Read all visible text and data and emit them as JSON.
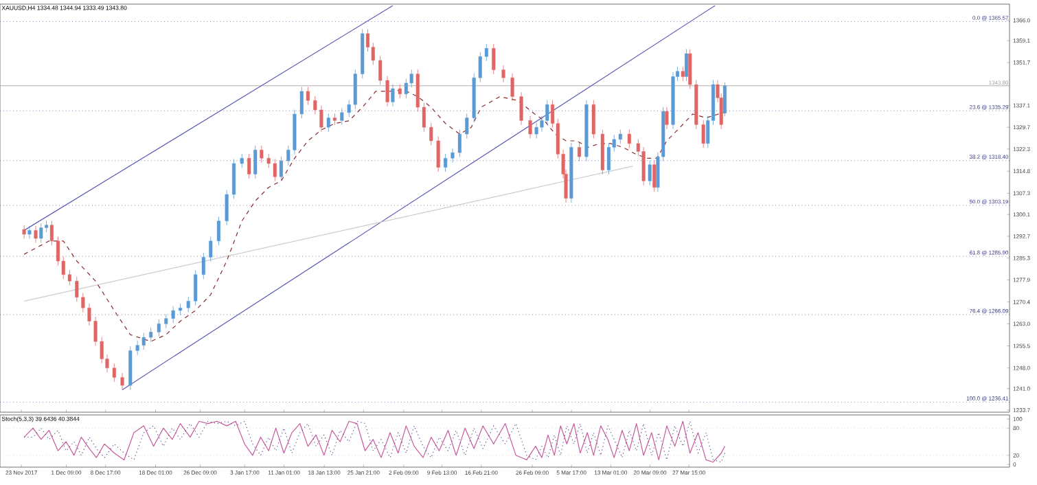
{
  "chart_data": [
    {
      "type": "candlestick",
      "title": "XAUUSD,H4 1334.48 1344.94 1333.49 1343.80",
      "x": [
        "2017-11-23T12:00",
        "2017-11-24T12:00",
        "2017-11-25T16:00",
        "2017-11-26T16:00",
        "2017-11-27T16:00",
        "2017-11-28T16:00",
        "2017-11-29T20:00",
        "2017-11-30T20:00",
        "2017-12-02T00:00",
        "2017-12-03T08:00",
        "2017-12-04T12:00",
        "2017-12-05T16:00",
        "2017-12-06T20:00",
        "2017-12-08T00:00",
        "2017-12-09T00:00",
        "2017-12-10T08:00",
        "2017-12-11T20:00",
        "2017-12-13T08:00",
        "2017-12-14T16:00",
        "2017-12-15T20:00",
        "2017-12-17T04:00",
        "2017-12-18T16:00",
        "2017-12-20T00:00",
        "2017-12-21T08:00",
        "2017-12-22T16:00",
        "2017-12-24T04:00",
        "2017-12-25T12:00",
        "2017-12-27T00:00",
        "2017-12-28T08:00",
        "2017-12-29T20:00",
        "2017-12-31T08:00",
        "2018-01-01T16:00",
        "2018-01-03T04:00",
        "2018-01-04T12:00",
        "2018-01-05T16:00",
        "2018-01-06T20:00",
        "2018-01-08T04:00",
        "2018-01-09T08:00",
        "2018-01-10T12:00",
        "2018-01-11T20:00",
        "2018-01-13T00:00",
        "2018-01-14T08:00",
        "2018-01-15T12:00",
        "2018-01-16T20:00",
        "2018-01-18T00:00",
        "2018-01-19T08:00",
        "2018-01-20T12:00",
        "2018-01-21T20:00",
        "2018-01-23T04:00",
        "2018-01-24T08:00",
        "2018-01-25T16:00",
        "2018-01-26T16:00",
        "2018-01-27T16:00",
        "2018-01-29T00:00",
        "2018-01-30T08:00",
        "2018-01-31T08:00",
        "2018-02-01T16:00",
        "2018-02-02T20:00",
        "2018-02-03T20:00",
        "2018-02-05T00:00",
        "2018-02-06T04:00",
        "2018-02-07T12:00",
        "2018-02-08T20:00",
        "2018-02-10T04:00",
        "2018-02-11T12:00",
        "2018-02-12T20:00",
        "2018-02-14T04:00",
        "2018-02-15T12:00",
        "2018-02-16T16:00",
        "2018-02-17T20:00",
        "2018-02-19T04:00",
        "2018-02-21T00:00",
        "2018-02-22T16:00",
        "2018-02-24T08:00",
        "2018-02-26T00:00",
        "2018-02-27T04:00",
        "2018-02-28T04:00",
        "2018-03-01T04:00",
        "2018-03-02T04:00",
        "2018-03-03T04:00",
        "2018-03-04T04:00",
        "2018-03-04T16:00",
        "2018-03-05T16:00",
        "2018-03-07T04:00",
        "2018-03-08T12:00",
        "2018-03-09T20:00",
        "2018-03-11T12:00",
        "2018-03-12T16:00",
        "2018-03-13T16:00",
        "2018-03-14T20:00",
        "2018-03-16T12:00",
        "2018-03-18T04:00",
        "2018-03-19T04:00",
        "2018-03-20T08:00",
        "2018-03-21T04:00",
        "2018-03-21T20:00",
        "2018-03-22T20:00",
        "2018-03-23T12:00",
        "2018-03-24T16:00",
        "2018-03-25T12:00",
        "2018-03-26T12:00",
        "2018-03-27T04:00",
        "2018-03-27T20:00",
        "2018-03-29T00:00",
        "2018-03-30T08:00",
        "2018-03-31T04:00",
        "2018-04-01T04:00",
        "2018-04-02T00:00",
        "2018-04-02T16:00",
        "2018-04-03T08:00"
      ],
      "ohlc": [
        [
          1295.0,
          1296.5,
          1291.9,
          1293.4
        ],
        [
          1293.4,
          1296.2,
          1291.9,
          1294.7
        ],
        [
          1294.7,
          1296.2,
          1290.5,
          1292.0
        ],
        [
          1292.0,
          1297.1,
          1290.5,
          1295.6
        ],
        [
          1295.6,
          1298.0,
          1294.1,
          1296.5
        ],
        [
          1296.5,
          1298.0,
          1289.6,
          1291.1
        ],
        [
          1291.1,
          1292.6,
          1282.8,
          1284.3
        ],
        [
          1284.3,
          1285.8,
          1278.2,
          1279.7
        ],
        [
          1279.7,
          1281.2,
          1276.0,
          1277.5
        ],
        [
          1277.5,
          1279.0,
          1270.5,
          1272.0
        ],
        [
          1272.0,
          1273.5,
          1266.9,
          1268.4
        ],
        [
          1268.4,
          1269.9,
          1262.4,
          1263.9
        ],
        [
          1263.9,
          1265.4,
          1255.5,
          1257.0
        ],
        [
          1257.0,
          1258.5,
          1249.6,
          1251.1
        ],
        [
          1251.1,
          1252.6,
          1246.5,
          1248.0
        ],
        [
          1248.0,
          1249.5,
          1243.3,
          1244.8
        ],
        [
          1244.8,
          1246.3,
          1240.6,
          1242.1
        ],
        [
          1242.1,
          1255.4,
          1240.6,
          1253.9
        ],
        [
          1253.9,
          1257.2,
          1252.4,
          1255.7
        ],
        [
          1255.7,
          1259.9,
          1254.2,
          1258.4
        ],
        [
          1258.4,
          1261.7,
          1256.9,
          1260.2
        ],
        [
          1260.2,
          1264.5,
          1258.7,
          1263.0
        ],
        [
          1263.0,
          1266.3,
          1261.5,
          1264.8
        ],
        [
          1264.8,
          1269.0,
          1263.3,
          1267.5
        ],
        [
          1267.5,
          1269.9,
          1266.0,
          1268.4
        ],
        [
          1268.4,
          1272.2,
          1266.9,
          1270.7
        ],
        [
          1270.7,
          1281.2,
          1269.2,
          1279.7
        ],
        [
          1279.7,
          1287.1,
          1278.2,
          1285.6
        ],
        [
          1285.6,
          1292.6,
          1284.1,
          1291.1
        ],
        [
          1291.1,
          1299.4,
          1289.6,
          1297.9
        ],
        [
          1297.9,
          1308.4,
          1296.4,
          1306.9
        ],
        [
          1306.9,
          1318.9,
          1305.4,
          1317.4
        ],
        [
          1317.4,
          1320.7,
          1315.9,
          1319.2
        ],
        [
          1319.2,
          1320.7,
          1312.3,
          1313.8
        ],
        [
          1313.8,
          1323.5,
          1312.3,
          1322.0
        ],
        [
          1322.0,
          1323.5,
          1317.7,
          1319.2
        ],
        [
          1319.2,
          1320.7,
          1315.9,
          1317.4
        ],
        [
          1317.4,
          1318.9,
          1311.4,
          1312.9
        ],
        [
          1312.9,
          1319.8,
          1311.4,
          1318.3
        ],
        [
          1318.3,
          1323.5,
          1316.8,
          1322.0
        ],
        [
          1322.0,
          1335.7,
          1320.5,
          1334.2
        ],
        [
          1334.2,
          1343.4,
          1332.7,
          1341.9
        ],
        [
          1341.9,
          1343.4,
          1337.3,
          1338.8
        ],
        [
          1338.8,
          1340.3,
          1334.1,
          1335.6
        ],
        [
          1335.6,
          1337.1,
          1328.2,
          1329.7
        ],
        [
          1329.7,
          1334.4,
          1328.2,
          1332.9
        ],
        [
          1332.9,
          1334.4,
          1330.5,
          1332.0
        ],
        [
          1332.0,
          1336.2,
          1330.5,
          1334.7
        ],
        [
          1334.7,
          1338.9,
          1333.2,
          1337.4
        ],
        [
          1337.4,
          1349.3,
          1335.9,
          1347.8
        ],
        [
          1347.8,
          1363.0,
          1346.3,
          1361.5
        ],
        [
          1361.5,
          1363.0,
          1355.4,
          1356.9
        ],
        [
          1356.9,
          1358.4,
          1350.9,
          1352.4
        ],
        [
          1352.4,
          1353.9,
          1344.1,
          1345.6
        ],
        [
          1345.6,
          1347.1,
          1336.8,
          1338.3
        ],
        [
          1338.3,
          1344.3,
          1336.8,
          1342.8
        ],
        [
          1342.8,
          1344.3,
          1339.5,
          1341.0
        ],
        [
          1341.0,
          1346.2,
          1339.5,
          1344.7
        ],
        [
          1344.7,
          1349.3,
          1343.2,
          1347.8
        ],
        [
          1347.8,
          1349.3,
          1335.0,
          1336.5
        ],
        [
          1336.5,
          1338.0,
          1328.2,
          1329.7
        ],
        [
          1329.7,
          1331.2,
          1323.6,
          1325.1
        ],
        [
          1325.1,
          1326.6,
          1314.6,
          1316.1
        ],
        [
          1316.1,
          1320.7,
          1314.6,
          1319.2
        ],
        [
          1319.2,
          1322.6,
          1317.7,
          1321.1
        ],
        [
          1321.1,
          1328.9,
          1319.6,
          1327.4
        ],
        [
          1327.4,
          1334.4,
          1325.9,
          1332.9
        ],
        [
          1332.9,
          1348.0,
          1331.4,
          1346.5
        ],
        [
          1346.5,
          1355.2,
          1345.0,
          1353.7
        ],
        [
          1353.7,
          1358.0,
          1352.2,
          1356.5
        ],
        [
          1356.5,
          1358.0,
          1347.7,
          1349.2
        ],
        [
          1349.2,
          1350.7,
          1345.0,
          1346.5
        ],
        [
          1346.5,
          1348.0,
          1338.6,
          1340.1
        ],
        [
          1340.1,
          1341.6,
          1330.5,
          1332.0
        ],
        [
          1332.0,
          1333.5,
          1325.9,
          1327.4
        ],
        [
          1327.4,
          1331.2,
          1325.9,
          1329.7
        ],
        [
          1329.7,
          1333.5,
          1328.2,
          1332.0
        ],
        [
          1332.0,
          1338.9,
          1330.5,
          1337.4
        ],
        [
          1337.4,
          1338.9,
          1329.5,
          1331.0
        ],
        [
          1331.0,
          1332.5,
          1319.1,
          1320.6
        ],
        [
          1320.6,
          1322.1,
          1312.3,
          1313.8
        ],
        [
          1313.8,
          1315.3,
          1304.1,
          1305.6
        ],
        [
          1305.6,
          1324.4,
          1304.1,
          1322.9
        ],
        [
          1322.9,
          1324.4,
          1318.2,
          1319.7
        ],
        [
          1319.7,
          1338.9,
          1318.2,
          1337.4
        ],
        [
          1337.4,
          1338.9,
          1325.9,
          1327.4
        ],
        [
          1327.4,
          1328.9,
          1313.7,
          1315.2
        ],
        [
          1315.2,
          1324.4,
          1313.7,
          1322.9
        ],
        [
          1322.9,
          1327.1,
          1321.4,
          1325.6
        ],
        [
          1325.6,
          1328.9,
          1324.1,
          1327.4
        ],
        [
          1327.4,
          1328.9,
          1322.7,
          1324.2
        ],
        [
          1324.2,
          1325.7,
          1320.0,
          1321.5
        ],
        [
          1321.5,
          1323.0,
          1310.0,
          1311.5
        ],
        [
          1311.5,
          1318.5,
          1310.0,
          1317.0
        ],
        [
          1317.0,
          1318.5,
          1307.8,
          1309.3
        ],
        [
          1309.3,
          1321.2,
          1307.8,
          1319.7
        ],
        [
          1319.7,
          1336.6,
          1318.2,
          1335.1
        ],
        [
          1335.1,
          1336.6,
          1329.1,
          1330.6
        ],
        [
          1330.6,
          1348.4,
          1329.1,
          1346.9
        ],
        [
          1346.9,
          1350.2,
          1345.4,
          1348.7
        ],
        [
          1348.7,
          1350.2,
          1345.4,
          1346.9
        ],
        [
          1346.9,
          1356.2,
          1345.4,
          1354.7
        ],
        [
          1354.7,
          1356.2,
          1342.7,
          1344.2
        ],
        [
          1344.2,
          1345.7,
          1329.1,
          1330.6
        ],
        [
          1330.6,
          1332.1,
          1322.7,
          1324.2
        ],
        [
          1324.2,
          1333.5,
          1322.7,
          1332.0
        ],
        [
          1332.0,
          1345.7,
          1330.5,
          1344.2
        ],
        [
          1344.2,
          1345.7,
          1338.2,
          1339.7
        ],
        [
          1339.7,
          1341.2,
          1329.1,
          1330.6
        ],
        [
          1334.48,
          1344.94,
          1333.49,
          1343.8
        ]
      ],
      "colors": [
        "#e06666",
        "#5b9bd5",
        "#e06666",
        "#5b9bd5",
        "#5b9bd5",
        "#e06666",
        "#e06666",
        "#e06666",
        "#e06666",
        "#e06666",
        "#e06666",
        "#e06666",
        "#e06666",
        "#e06666",
        "#e06666",
        "#e06666",
        "#e06666",
        "#5b9bd5",
        "#5b9bd5",
        "#5b9bd5",
        "#5b9bd5",
        "#5b9bd5",
        "#5b9bd5",
        "#5b9bd5",
        "#5b9bd5",
        "#5b9bd5",
        "#5b9bd5",
        "#5b9bd5",
        "#5b9bd5",
        "#5b9bd5",
        "#5b9bd5",
        "#5b9bd5",
        "#5b9bd5",
        "#e06666",
        "#5b9bd5",
        "#e06666",
        "#e06666",
        "#e06666",
        "#5b9bd5",
        "#5b9bd5",
        "#5b9bd5",
        "#5b9bd5",
        "#e06666",
        "#e06666",
        "#e06666",
        "#5b9bd5",
        "#e06666",
        "#5b9bd5",
        "#5b9bd5",
        "#5b9bd5",
        "#5b9bd5",
        "#e06666",
        "#e06666",
        "#e06666",
        "#e06666",
        "#5b9bd5",
        "#e06666",
        "#5b9bd5",
        "#5b9bd5",
        "#e06666",
        "#e06666",
        "#e06666",
        "#e06666",
        "#5b9bd5",
        "#5b9bd5",
        "#5b9bd5",
        "#5b9bd5",
        "#5b9bd5",
        "#5b9bd5",
        "#5b9bd5",
        "#e06666",
        "#e06666",
        "#e06666",
        "#e06666",
        "#e06666",
        "#5b9bd5",
        "#5b9bd5",
        "#5b9bd5",
        "#e06666",
        "#e06666",
        "#e06666",
        "#e06666",
        "#5b9bd5",
        "#e06666",
        "#5b9bd5",
        "#e06666",
        "#e06666",
        "#5b9bd5",
        "#5b9bd5",
        "#5b9bd5",
        "#e06666",
        "#e06666",
        "#e06666",
        "#5b9bd5",
        "#e06666",
        "#5b9bd5",
        "#5b9bd5",
        "#e06666",
        "#5b9bd5",
        "#5b9bd5",
        "#e06666",
        "#5b9bd5",
        "#e06666",
        "#e06666",
        "#e06666",
        "#5b9bd5",
        "#5b9bd5",
        "#e06666",
        "#e06666",
        "#5b9bd5"
      ],
      "series": [
        {
          "type": "line",
          "color": "#5a5ab4",
          "x": [
            "2017-11-23T12:00",
            "2018-01-31T08:00"
          ],
          "values": [
            1294.7,
            1371.0
          ]
        },
        {
          "type": "line",
          "color": "#5a5ab4",
          "x": [
            "2017-12-11T20:00",
            "2018-04-01T12:00"
          ],
          "values": [
            1240.6,
            1371.0
          ]
        },
        {
          "type": "line",
          "color": "#cccccc",
          "x": [
            "2017-11-23T12:00",
            "2018-03-17T04:00"
          ],
          "values": [
            1270.7,
            1316.5
          ]
        },
        {
          "type": "line",
          "color": "#8b2a2a",
          "line_style": "dashed",
          "x": [
            "2017-11-23T12:00",
            "2017-11-28T04:00",
            "2017-11-30T20:00",
            "2017-12-03T08:00",
            "2017-12-06T20:00",
            "2017-12-10T20:00",
            "2017-12-13T08:00",
            "2017-12-17T04:00",
            "2017-12-20T00:00",
            "2017-12-22T16:00",
            "2017-12-25T12:00",
            "2017-12-28T08:00",
            "2017-12-31T08:00",
            "2018-01-03T04:00",
            "2018-01-05T16:00",
            "2018-01-08T04:00",
            "2018-01-10T12:00",
            "2018-01-13T00:00",
            "2018-01-15T12:00",
            "2018-01-18T00:00",
            "2018-01-20T12:00",
            "2018-01-23T04:00",
            "2018-01-25T16:00",
            "2018-01-28T04:00",
            "2018-01-30T20:00",
            "2018-02-02T08:00",
            "2018-02-05T00:00",
            "2018-02-07T12:00",
            "2018-02-10T04:00",
            "2018-02-12T20:00",
            "2018-02-15T00:00",
            "2018-02-16T20:00",
            "2018-02-20T08:00",
            "2018-02-23T16:00",
            "2018-02-26T20:00",
            "2018-02-28T16:00",
            "2018-03-02T16:00",
            "2018-03-04T16:00",
            "2018-03-06T16:00",
            "2018-03-08T20:00",
            "2018-03-11T00:00",
            "2018-03-13T00:00",
            "2018-03-15T08:00",
            "2018-03-17T16:00",
            "2018-03-19T20:00",
            "2018-03-21T16:00",
            "2018-03-23T12:00",
            "2018-03-26T00:00",
            "2018-03-28T08:00",
            "2018-03-30T20:00",
            "2018-04-02T04:00",
            "2018-04-03T08:00"
          ],
          "values": [
            1286.6,
            1291.1,
            1291.1,
            1284.3,
            1277.5,
            1266.1,
            1259.3,
            1257.0,
            1259.3,
            1263.9,
            1267.5,
            1272.9,
            1284.3,
            1297.9,
            1304.7,
            1309.3,
            1311.5,
            1319.2,
            1325.1,
            1328.8,
            1331.0,
            1331.9,
            1336.5,
            1341.9,
            1341.9,
            1342.4,
            1340.1,
            1336.5,
            1331.0,
            1327.4,
            1329.7,
            1336.5,
            1340.1,
            1338.8,
            1334.2,
            1331.9,
            1327.4,
            1325.1,
            1325.1,
            1322.9,
            1324.2,
            1324.2,
            1322.9,
            1320.6,
            1319.2,
            1319.2,
            1325.1,
            1329.7,
            1334.2,
            1332.9,
            1334.2,
            1334.7
          ]
        }
      ],
      "xlim": [
        "2017-11-19T00:00",
        "2018-05-26T12:00"
      ],
      "ylim": [
        1233.0,
        1371.5
      ],
      "xticks": [
        {
          "value": "2017-11-23T00:00",
          "label": null
        },
        {
          "value": "2017-12-01T09:00",
          "label": null
        },
        {
          "value": "2017-12-08T17:00",
          "label": null
        },
        {
          "value": "2017-12-18T01:00",
          "label": null
        },
        {
          "value": "2017-12-26T09:00",
          "label": null
        },
        {
          "value": "2018-01-03T17:00",
          "label": null
        },
        {
          "value": "2018-01-11T01:00",
          "label": null
        },
        {
          "value": "2018-01-18T13:00",
          "label": null
        },
        {
          "value": "2018-01-25T21:00",
          "label": null
        },
        {
          "value": "2018-02-02T09:00",
          "label": null
        },
        {
          "value": "2018-02-09T13:00",
          "label": null
        },
        {
          "value": "2018-02-16T21:00",
          "label": null
        },
        {
          "value": "2018-02-26T09:00",
          "label": null
        },
        {
          "value": "2018-03-05T17:00",
          "label": null
        },
        {
          "value": "2018-03-13T01:00",
          "label": null
        },
        {
          "value": "2018-03-20T09:00",
          "label": null
        },
        {
          "value": "2018-03-27T15:00",
          "label": null
        }
      ],
      "yticks": [
        {
          "value": 1366.0,
          "label": "1366.0"
        },
        {
          "value": 1359.1,
          "label": "1359.1"
        },
        {
          "value": 1351.7,
          "label": "1351.7"
        },
        {
          "value": 1337.1,
          "label": "1337.1"
        },
        {
          "value": 1329.7,
          "label": "1329.7"
        },
        {
          "value": 1322.3,
          "label": "1322.3"
        },
        {
          "value": 1314.8,
          "label": "1314.8"
        },
        {
          "value": 1307.3,
          "label": "1307.3"
        },
        {
          "value": 1300.1,
          "label": "1300.1"
        },
        {
          "value": 1292.7,
          "label": "1292.7"
        },
        {
          "value": 1285.3,
          "label": "1285.3"
        },
        {
          "value": 1277.9,
          "label": "1277.9"
        },
        {
          "value": 1270.4,
          "label": "1270.4"
        },
        {
          "value": 1263.0,
          "label": "1263.0"
        },
        {
          "value": 1255.5,
          "label": "1255.5"
        },
        {
          "value": 1248.0,
          "label": "1248.0"
        },
        {
          "value": 1241.0,
          "label": "1241.0"
        },
        {
          "value": 1233.7,
          "label": "1233.7"
        }
      ],
      "tick_labels": "y",
      "ref_lines": [
        {
          "axis": "y",
          "value": 1365.57,
          "label": "0.0 @ 1365.57",
          "color": "#3c3c8c",
          "line_style": "dotted"
        },
        {
          "axis": "y",
          "value": 1335.29,
          "label": "23.6 @ 1335.29",
          "color": "#3c3c8c",
          "line_style": "dotted"
        },
        {
          "axis": "y",
          "value": 1318.4,
          "label": "38.2 @ 1318.40",
          "color": "#3c3c8c",
          "line_style": "dotted"
        },
        {
          "axis": "y",
          "value": 1303.19,
          "label": "50.0 @ 1303.19",
          "color": "#3c3c8c",
          "line_style": "dotted"
        },
        {
          "axis": "y",
          "value": 1285.9,
          "label": "61.8 @ 1285.90",
          "color": "#3c3c8c",
          "line_style": "dotted"
        },
        {
          "axis": "y",
          "value": 1266.09,
          "label": "76.4 @ 1266.09",
          "color": "#3c3c8c",
          "line_style": "dotted"
        },
        {
          "axis": "y",
          "value": 1236.41,
          "label": "100.0 @ 1236.41",
          "color": "#3c3c8c",
          "line_style": "dotted"
        },
        {
          "axis": "y",
          "value": 1343.8,
          "label": "1343.80",
          "color": "#9a9a9a",
          "line_style": "solid"
        }
      ]
    },
    {
      "type": "line",
      "title": "Stoch(5,3,3) 39.6436 40.3844",
      "x": [
        "2017-11-23T12:00",
        "2017-11-25T04:00",
        "2017-11-26T16:00",
        "2017-11-28T04:00",
        "2017-11-29T20:00",
        "2017-12-01T08:00",
        "2017-12-02T20:00",
        "2017-12-04T04:00",
        "2017-12-05T16:00",
        "2017-12-07T00:00",
        "2017-12-08T12:00",
        "2017-12-10T08:00",
        "2017-12-12T04:00",
        "2017-12-14T00:00",
        "2017-12-15T20:00",
        "2017-12-17T16:00",
        "2017-12-19T12:00",
        "2017-12-21T04:00",
        "2017-12-22T16:00",
        "2017-12-24T12:00",
        "2017-12-26T04:00",
        "2017-12-27T20:00",
        "2017-12-29T12:00",
        "2017-12-31T08:00",
        "2018-01-02T00:00",
        "2018-01-03T16:00",
        "2018-01-05T04:00",
        "2018-01-06T16:00",
        "2018-01-08T04:00",
        "2018-01-09T12:00",
        "2018-01-11T00:00",
        "2018-01-12T12:00",
        "2018-01-14T00:00",
        "2018-01-15T12:00",
        "2018-01-17T00:00",
        "2018-01-18T12:00",
        "2018-01-20T00:00",
        "2018-01-21T12:00",
        "2018-01-23T04:00",
        "2018-01-24T16:00",
        "2018-01-26T04:00",
        "2018-01-27T16:00",
        "2018-01-29T04:00",
        "2018-01-30T20:00",
        "2018-02-01T08:00",
        "2018-02-02T20:00",
        "2018-02-04T08:00",
        "2018-02-06T00:00",
        "2018-02-07T12:00",
        "2018-02-09T00:00",
        "2018-02-10T16:00",
        "2018-02-12T04:00",
        "2018-02-13T20:00",
        "2018-02-15T12:00",
        "2018-02-17T04:00",
        "2018-02-19T04:00",
        "2018-02-21T08:00",
        "2018-02-23T08:00",
        "2018-02-25T08:00",
        "2018-02-27T00:00",
        "2018-02-28T04:00",
        "2018-03-01T08:00",
        "2018-03-02T12:00",
        "2018-03-03T16:00",
        "2018-03-04T20:00",
        "2018-03-06T04:00",
        "2018-03-07T08:00",
        "2018-03-08T16:00",
        "2018-03-09T20:00",
        "2018-03-11T04:00",
        "2018-03-12T12:00",
        "2018-03-13T16:00",
        "2018-03-15T04:00",
        "2018-03-16T12:00",
        "2018-03-17T20:00",
        "2018-03-19T04:00",
        "2018-03-20T16:00",
        "2018-03-22T00:00",
        "2018-03-23T12:00",
        "2018-03-25T00:00",
        "2018-03-26T12:00",
        "2018-03-27T20:00",
        "2018-03-29T08:00",
        "2018-03-30T20:00",
        "2018-04-01T04:00",
        "2018-04-02T16:00",
        "2018-04-03T08:00"
      ],
      "series": [
        {
          "color": "#c85a9c",
          "values": [
            60,
            80,
            55,
            75,
            30,
            50,
            20,
            60,
            35,
            15,
            45,
            25,
            10,
            70,
            85,
            40,
            80,
            55,
            90,
            60,
            95,
            90,
            95,
            85,
            95,
            45,
            20,
            60,
            30,
            80,
            25,
            70,
            90,
            40,
            65,
            20,
            75,
            50,
            95,
            90,
            30,
            55,
            15,
            70,
            25,
            85,
            40,
            15,
            60,
            30,
            75,
            20,
            80,
            35,
            85,
            45,
            90,
            20,
            10,
            40,
            15,
            65,
            20,
            85,
            45,
            90,
            25,
            70,
            20,
            85,
            55,
            15,
            75,
            30,
            90,
            20,
            70,
            10,
            85,
            40,
            95,
            25,
            70,
            10,
            5,
            25,
            40
          ]
        },
        {
          "color": "#5a4a8c",
          "line_style": "dotted",
          "values": [
            60,
            60,
            80,
            55,
            75,
            30,
            50,
            20,
            60,
            35,
            15,
            45,
            25,
            10,
            70,
            85,
            40,
            80,
            55,
            90,
            60,
            95,
            90,
            95,
            85,
            95,
            45,
            20,
            60,
            30,
            80,
            25,
            70,
            90,
            40,
            65,
            20,
            75,
            50,
            95,
            90,
            30,
            55,
            15,
            70,
            25,
            85,
            40,
            15,
            60,
            30,
            75,
            20,
            80,
            35,
            85,
            45,
            90,
            20,
            10,
            40,
            15,
            65,
            20,
            85,
            45,
            90,
            25,
            70,
            20,
            85,
            55,
            15,
            75,
            30,
            90,
            20,
            70,
            10,
            85,
            40,
            95,
            25,
            70,
            10,
            5,
            25
          ]
        }
      ],
      "xlim": [
        "2017-11-19T00:00",
        "2018-05-26T12:00"
      ],
      "ylim": [
        -6,
        109
      ],
      "yticks": [
        0,
        20,
        80,
        100
      ],
      "xticks": [
        {
          "value": "2017-11-23T00:00",
          "label": "23 Nov 2017"
        },
        {
          "value": "2017-12-01T09:00",
          "label": "1 Dec 09:00"
        },
        {
          "value": "2017-12-08T17:00",
          "label": "8 Dec 17:00"
        },
        {
          "value": "2017-12-18T01:00",
          "label": "18 Dec 01:00"
        },
        {
          "value": "2017-12-26T09:00",
          "label": "26 Dec 09:00"
        },
        {
          "value": "2018-01-03T17:00",
          "label": "3 Jan 17:00"
        },
        {
          "value": "2018-01-11T01:00",
          "label": "11 Jan 01:00"
        },
        {
          "value": "2018-01-18T13:00",
          "label": "18 Jan 13:00"
        },
        {
          "value": "2018-01-25T21:00",
          "label": "25 Jan 21:00"
        },
        {
          "value": "2018-02-02T09:00",
          "label": "2 Feb 09:00"
        },
        {
          "value": "2018-02-09T13:00",
          "label": "9 Feb 13:00"
        },
        {
          "value": "2018-02-16T21:00",
          "label": "16 Feb 21:00"
        },
        {
          "value": "2018-02-26T09:00",
          "label": "26 Feb 09:00"
        },
        {
          "value": "2018-03-05T17:00",
          "label": "5 Mar 17:00"
        },
        {
          "value": "2018-03-13T01:00",
          "label": "13 Mar 01:00"
        },
        {
          "value": "2018-03-20T09:00",
          "label": "20 Mar 09:00"
        },
        {
          "value": "2018-03-27T15:00",
          "label": "27 Mar 15:00"
        }
      ],
      "ref_lines": [
        {
          "axis": "y",
          "value": 80,
          "color": "#c0c0c0",
          "line_style": "dotted"
        },
        {
          "axis": "y",
          "value": 20,
          "color": "#c0c0c0",
          "line_style": "dotted"
        }
      ]
    }
  ]
}
